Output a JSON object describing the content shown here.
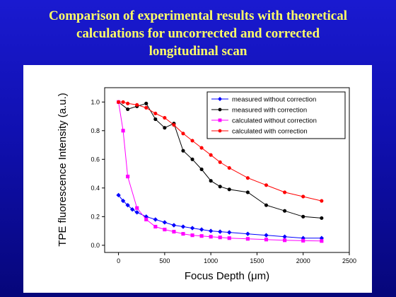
{
  "slide": {
    "title_lines": [
      "Comparison of experimental results with theoretical",
      "calculations for uncorrected and corrected",
      "longitudinal scan"
    ]
  },
  "chart_data": {
    "type": "line",
    "xlabel": "Focus Depth (μm)",
    "ylabel": "TPE fluorescence Intensity (a.u.)",
    "xlim": [
      -150,
      2500
    ],
    "ylim": [
      -0.05,
      1.1
    ],
    "xticks": [
      0,
      500,
      1000,
      1500,
      2000,
      2500
    ],
    "yticks": [
      0.0,
      0.2,
      0.4,
      0.6,
      0.8,
      1.0
    ],
    "xtick_labels": [
      "0",
      "500",
      "1000",
      "1500",
      "2000",
      "2500"
    ],
    "ytick_labels": [
      "0.0",
      "0.2",
      "0.4",
      "0.6",
      "0.8",
      "1.0"
    ],
    "legend_position": "top-right",
    "grid": false,
    "series": [
      {
        "name": "measured without correction",
        "color": "#0000ff",
        "marker": "diamond",
        "x": [
          0,
          50,
          100,
          150,
          200,
          300,
          400,
          500,
          600,
          700,
          800,
          900,
          1000,
          1100,
          1200,
          1400,
          1600,
          1800,
          2000,
          2200
        ],
        "y": [
          0.35,
          0.31,
          0.28,
          0.25,
          0.23,
          0.2,
          0.18,
          0.16,
          0.14,
          0.13,
          0.12,
          0.11,
          0.1,
          0.095,
          0.09,
          0.08,
          0.07,
          0.06,
          0.05,
          0.05
        ]
      },
      {
        "name": "measured with correction",
        "color": "#000000",
        "marker": "circle",
        "x": [
          0,
          100,
          200,
          300,
          400,
          500,
          600,
          700,
          800,
          900,
          1000,
          1100,
          1200,
          1400,
          1600,
          1800,
          2000,
          2200
        ],
        "y": [
          1.0,
          0.95,
          0.97,
          0.99,
          0.88,
          0.82,
          0.85,
          0.66,
          0.6,
          0.53,
          0.45,
          0.41,
          0.39,
          0.37,
          0.28,
          0.24,
          0.2,
          0.19
        ]
      },
      {
        "name": "calculated without correction",
        "color": "#ff00ff",
        "marker": "square",
        "x": [
          0,
          50,
          100,
          200,
          300,
          400,
          500,
          600,
          700,
          800,
          900,
          1000,
          1100,
          1200,
          1400,
          1600,
          1800,
          2000,
          2200
        ],
        "y": [
          1.0,
          0.8,
          0.48,
          0.26,
          0.18,
          0.13,
          0.11,
          0.095,
          0.08,
          0.07,
          0.065,
          0.06,
          0.055,
          0.05,
          0.045,
          0.04,
          0.035,
          0.032,
          0.03
        ]
      },
      {
        "name": "calculated with correction",
        "color": "#ff0000",
        "marker": "circle",
        "x": [
          0,
          50,
          100,
          200,
          300,
          400,
          500,
          600,
          700,
          800,
          900,
          1000,
          1100,
          1200,
          1400,
          1600,
          1800,
          2000,
          2200
        ],
        "y": [
          1.0,
          1.0,
          0.99,
          0.98,
          0.96,
          0.92,
          0.89,
          0.84,
          0.78,
          0.73,
          0.68,
          0.63,
          0.58,
          0.54,
          0.47,
          0.42,
          0.37,
          0.34,
          0.31
        ]
      }
    ]
  }
}
